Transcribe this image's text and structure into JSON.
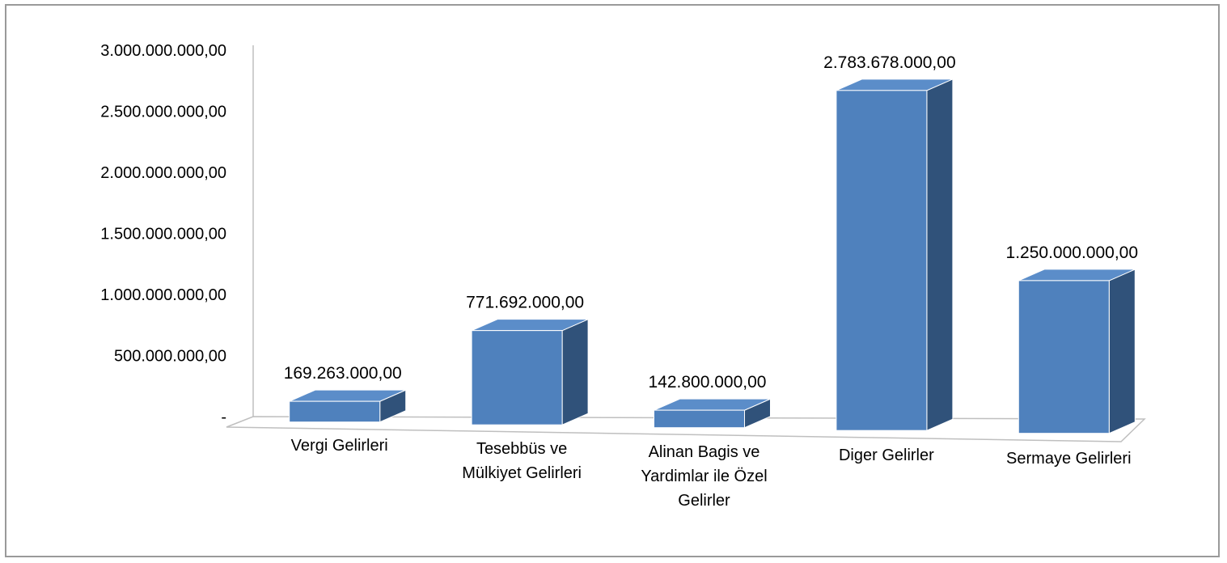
{
  "chart_data": {
    "type": "bar",
    "title": "",
    "xlabel": "",
    "ylabel": "",
    "ylim": [
      0,
      3000000000
    ],
    "yticks": [
      0,
      500000000,
      1000000000,
      1500000000,
      2000000000,
      2500000000,
      3000000000
    ],
    "ytick_labels": [
      "-",
      "500.000.000,00",
      "1.000.000.000,00",
      "1.500.000.000,00",
      "2.000.000.000,00",
      "2.500.000.000,00",
      "3.000.000.000,00"
    ],
    "categories": [
      [
        "Vergi Gelirleri"
      ],
      [
        "Tesebbüs ve",
        "Mülkiyet Gelirleri"
      ],
      [
        "Alinan Bagis ve",
        "Yardimlar ile Özel",
        "Gelirler"
      ],
      [
        "Diger Gelirler"
      ],
      [
        "Sermaye Gelirleri"
      ]
    ],
    "values": [
      169263000,
      771692000,
      142800000,
      2783678000,
      1250000000
    ],
    "data_labels": [
      "169.263.000,00",
      "771.692.000,00",
      "142.800.000,00",
      "2.783.678.000,00",
      "1.250.000.000,00"
    ],
    "grid": false,
    "legend": "none",
    "style": "3d-column",
    "colors": {
      "front": "#4f81bd",
      "side": "#30527a",
      "top": "#5b8dc9"
    }
  }
}
